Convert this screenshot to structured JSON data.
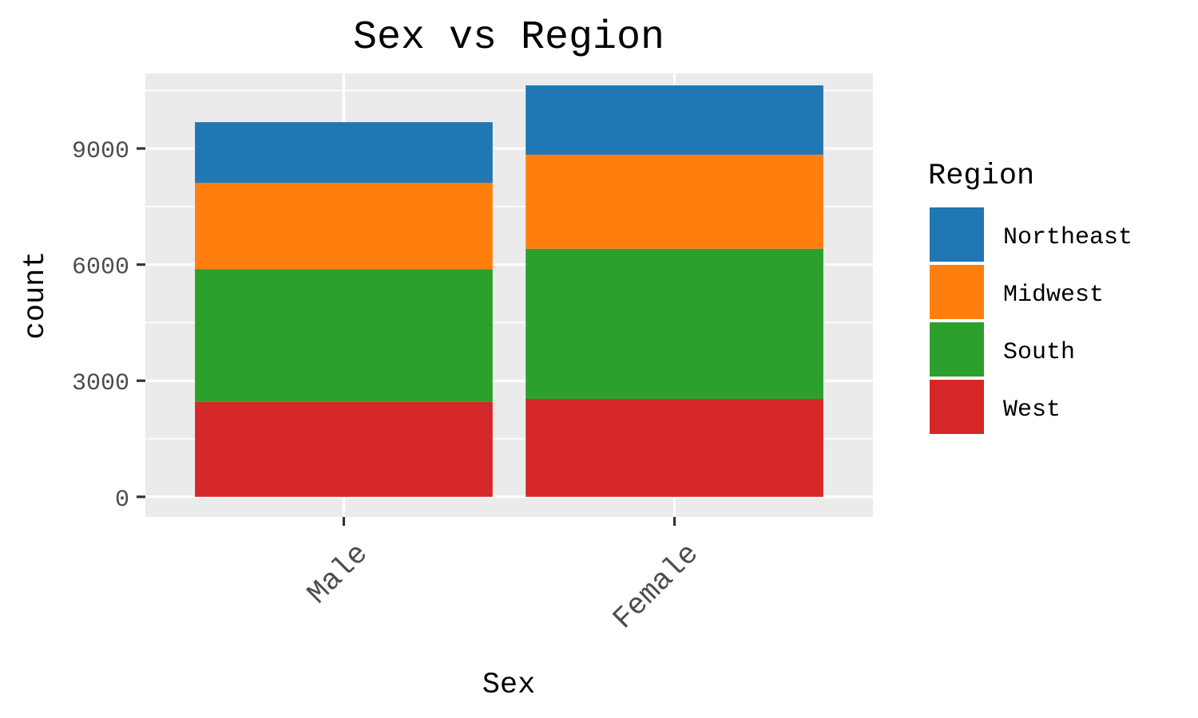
{
  "chart_data": {
    "type": "bar",
    "stacked": true,
    "title": "Sex vs Region",
    "xlabel": "Sex",
    "ylabel": "count",
    "categories": [
      "Male",
      "Female"
    ],
    "ylim": [
      -520,
      10940
    ],
    "yticks": [
      0,
      3000,
      6000,
      9000
    ],
    "ytick_labels": [
      "0",
      "3000",
      "6000",
      "9000"
    ],
    "grid": true,
    "legend": {
      "title": "Region",
      "placement": "right"
    },
    "series": [
      {
        "name": "West",
        "color": "#d62728",
        "values": [
          2450,
          2530
        ]
      },
      {
        "name": "South",
        "color": "#2ca02c",
        "values": [
          3430,
          3880
        ]
      },
      {
        "name": "Midwest",
        "color": "#ff7f0e",
        "values": [
          2230,
          2430
        ]
      },
      {
        "name": "Northeast",
        "color": "#1f77b4",
        "values": [
          1570,
          1790
        ]
      }
    ],
    "legend_order": [
      "Northeast",
      "Midwest",
      "South",
      "West"
    ]
  }
}
